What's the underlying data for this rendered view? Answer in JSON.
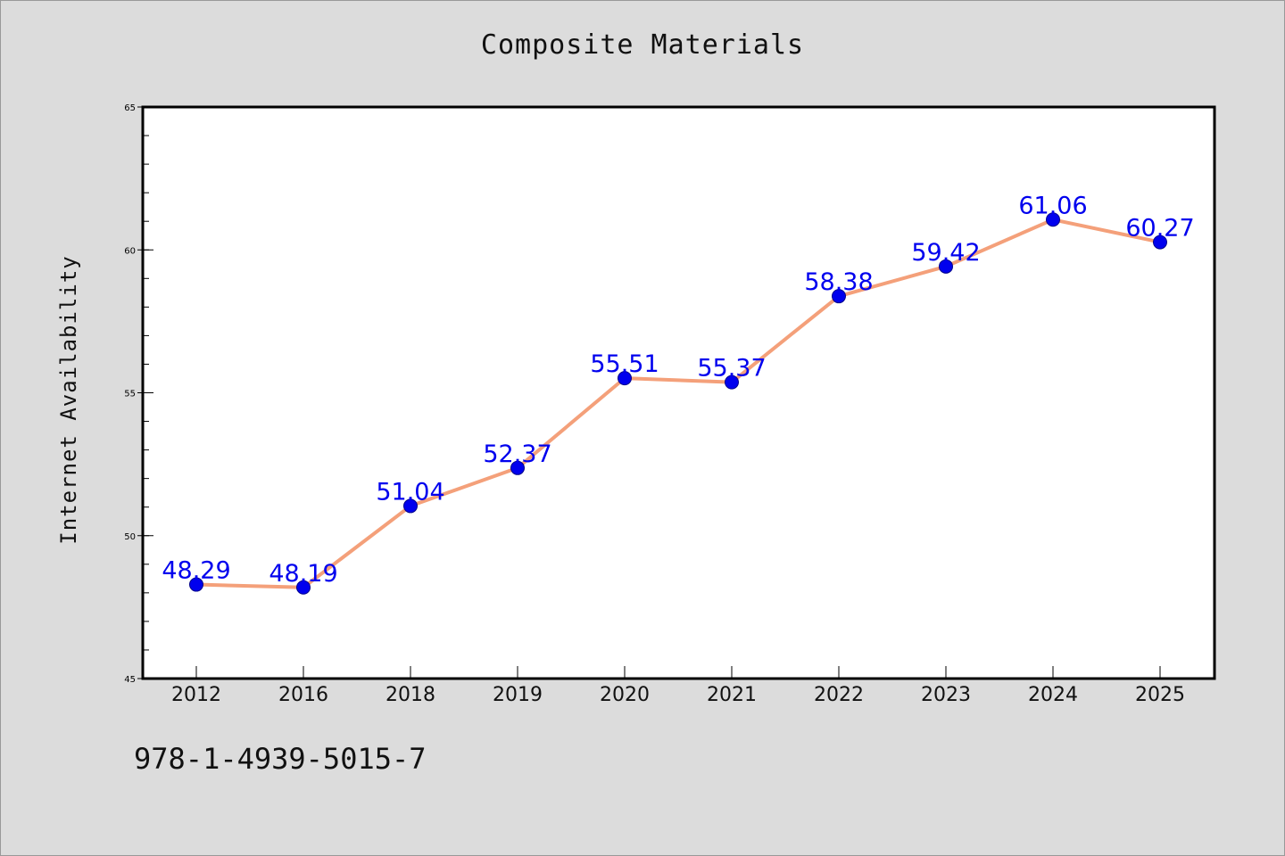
{
  "chart_data": {
    "type": "line",
    "title": "Composite Materials",
    "xlabel": "",
    "ylabel": "Internet Availability",
    "categories": [
      "2012",
      "2016",
      "2018",
      "2019",
      "2020",
      "2021",
      "2022",
      "2023",
      "2024",
      "2025"
    ],
    "series": [
      {
        "values": [
          48.29,
          48.19,
          51.04,
          52.37,
          55.51,
          55.37,
          58.38,
          59.42,
          61.06,
          60.27
        ],
        "labels": [
          "48.29",
          "48.19",
          "51.04",
          "52.37",
          "55.51",
          "55.37",
          "58.38",
          "59.42",
          "61.06",
          "60.27"
        ],
        "line_color": "#f4a07a",
        "marker_color": "#0000ee",
        "label_color": "#0000ee"
      }
    ],
    "ylim": [
      45,
      65
    ],
    "yticks": [
      45,
      50,
      55,
      60,
      65
    ],
    "grid": false,
    "legend": "none",
    "footer_text": "978-1-4939-5015-7",
    "background_color": "#dcdcdc",
    "plot_background_color": "#ffffff"
  }
}
